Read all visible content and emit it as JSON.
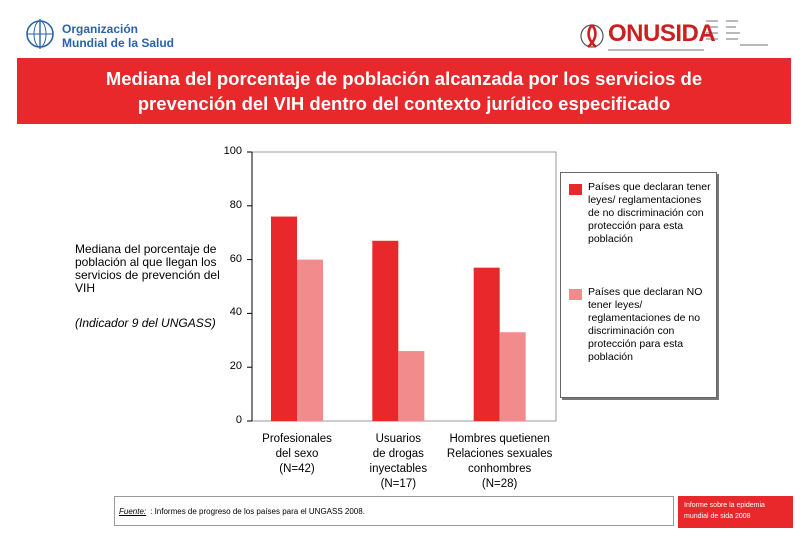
{
  "header": {
    "who_logo": {
      "line1": "Organización",
      "line2": "Mundial de la Salud",
      "icon": "who-emblem-icon"
    },
    "unaids_logo": {
      "name": "ONUSIDA",
      "icon": "ribbon-icon"
    }
  },
  "banner": {
    "line1": "Mediana del porcentaje de población alcanzada por los servicios de",
    "line2": "prevención del VIH dentro del contexto jurídico especificado"
  },
  "y_axis_label": "Mediana del porcentaje de población al que llegan los servicios de prevención del VIH",
  "y_axis_note": "(Indicador 9 del UNGASS)",
  "chart_data": {
    "type": "bar",
    "categories": [
      {
        "line1": "Profesionales",
        "line2": "del sexo",
        "line3": "(N=42)",
        "line4": ""
      },
      {
        "line1": "Usuarios",
        "line2": "de drogas",
        "line3": "inyectables",
        "line4": "(N=17)"
      },
      {
        "line1": "Hombres quetienen",
        "line2": "Relaciones sexuales",
        "line3": "conhombres",
        "line4": "(N=28)"
      }
    ],
    "series": [
      {
        "name": "Países que declaran tener leyes/ reglamentaciones de no discriminación con protección para esta población",
        "color": "#e8282a",
        "values": [
          76,
          67,
          57
        ]
      },
      {
        "name": "Países que declaran NO tener leyes/ reglamentaciones de no discriminación con protección para esta población",
        "color": "#f28c8c",
        "values": [
          60,
          26,
          33
        ]
      }
    ],
    "ylim": [
      0,
      100
    ],
    "yticks": [
      "0",
      "20",
      "40",
      "60",
      "80",
      "100"
    ]
  },
  "source": {
    "label": "Fuente:",
    "text": ": Informes de progreso de los países para el UNGASS 2008."
  },
  "footer_box": {
    "line1": "Informe sobre la epidemia",
    "line2": "mundial de sida 2008"
  }
}
